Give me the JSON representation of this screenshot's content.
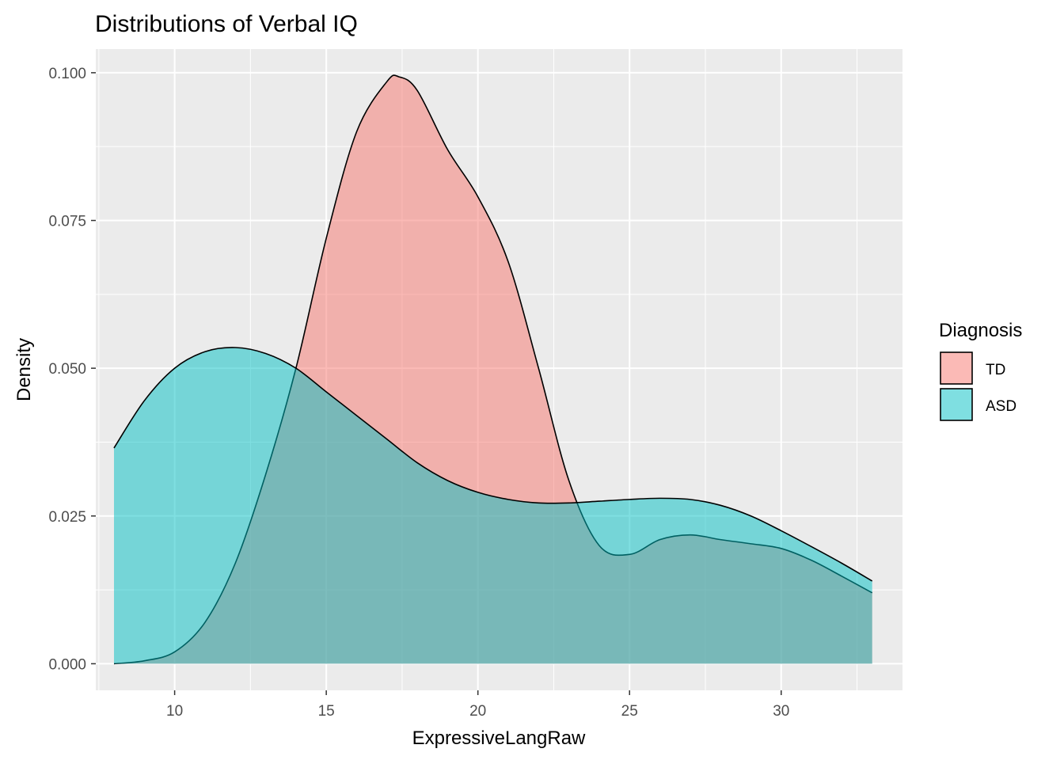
{
  "chart_data": {
    "type": "area",
    "title": "Distributions of Verbal IQ",
    "xlabel": "ExpressiveLangRaw",
    "ylabel": "Density",
    "xlim": [
      7.4,
      34.0
    ],
    "ylim": [
      -0.0045,
      0.104
    ],
    "x_ticks": [
      10,
      15,
      20,
      25,
      30
    ],
    "x_tick_labels": [
      "10",
      "15",
      "20",
      "25",
      "30"
    ],
    "y_ticks": [
      0.0,
      0.025,
      0.05,
      0.075,
      0.1
    ],
    "y_tick_labels": [
      "0.000",
      "0.025",
      "0.050",
      "0.075",
      "0.100"
    ],
    "grid": true,
    "panel_background": "#EBEBEB",
    "legend": {
      "title": "Diagnosis",
      "position": "right"
    },
    "series": [
      {
        "name": "TD",
        "color": "#F8766D",
        "x": [
          8,
          9,
          10,
          11,
          12,
          13,
          14,
          15,
          16,
          17,
          17.4,
          18,
          19,
          20,
          21,
          22,
          23,
          24,
          25,
          26,
          27,
          28,
          29,
          30,
          31,
          32,
          33
        ],
        "y": [
          0.0,
          0.0005,
          0.002,
          0.007,
          0.017,
          0.032,
          0.05,
          0.072,
          0.09,
          0.0985,
          0.0993,
          0.097,
          0.087,
          0.079,
          0.068,
          0.05,
          0.031,
          0.02,
          0.0185,
          0.021,
          0.0218,
          0.021,
          0.0203,
          0.0195,
          0.0175,
          0.0148,
          0.012
        ]
      },
      {
        "name": "ASD",
        "color": "#00BFC4",
        "x": [
          8,
          9,
          10,
          11,
          12,
          13,
          14,
          15,
          16,
          17,
          18,
          19,
          20,
          21,
          22,
          23,
          24,
          25,
          26,
          27,
          28,
          29,
          30,
          31,
          32,
          33
        ],
        "y": [
          0.0365,
          0.0445,
          0.05,
          0.0528,
          0.0535,
          0.0525,
          0.05,
          0.046,
          0.042,
          0.038,
          0.034,
          0.031,
          0.029,
          0.0278,
          0.0272,
          0.0272,
          0.0275,
          0.0278,
          0.028,
          0.0278,
          0.0268,
          0.025,
          0.0225,
          0.0198,
          0.017,
          0.014
        ]
      }
    ]
  }
}
